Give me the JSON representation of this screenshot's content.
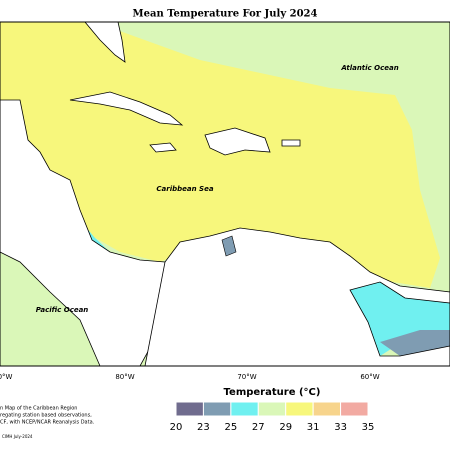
{
  "title": "Mean Temperature For July 2024",
  "map": {
    "labels": [
      "Atlantic Ocean",
      "Caribbean Sea",
      "Pacific Ocean"
    ],
    "lon_labels": [
      "0°W",
      "80°W",
      "70°W",
      "60°W"
    ]
  },
  "legend": {
    "title": "Temperature (°C)",
    "ticks": [
      20,
      23,
      25,
      27,
      29,
      31,
      33,
      35
    ],
    "colors": [
      "#706c8e",
      "#7f9cb2",
      "#70f0f0",
      "#daf7b8",
      "#f7f77c",
      "#f7d48c",
      "#f2aaa2"
    ]
  },
  "credits": [
    "n Map of the Caribbean Region",
    "regating station based observations,",
    "CF, with NCEP/NCAR Reanalysis Data.",
    "CIMH July-2024"
  ]
}
